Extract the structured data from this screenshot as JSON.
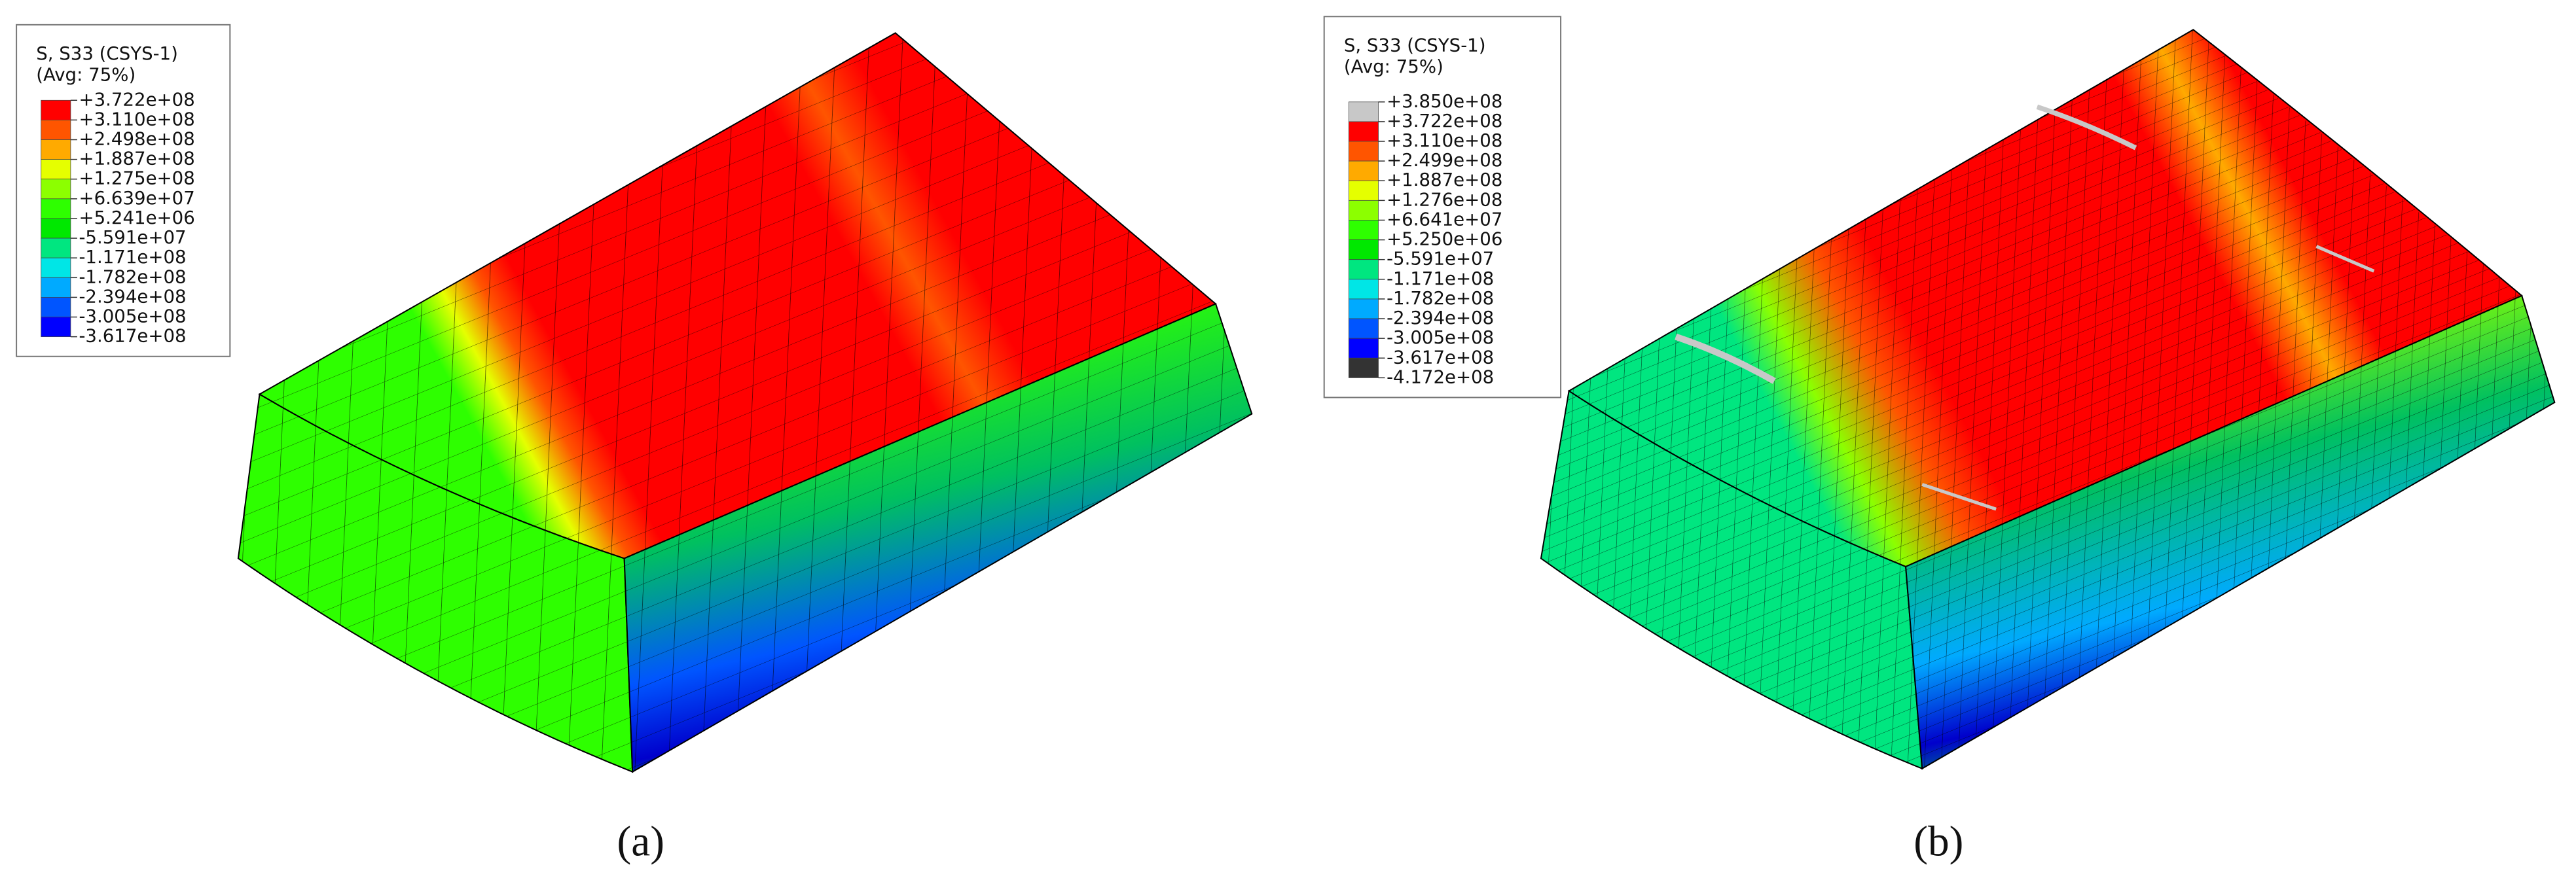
{
  "legends": [
    {
      "title": "S, S33 (CSYS-1)",
      "subtitle": "(Avg: 75%)",
      "labels": [
        "+3.722e+08",
        "+3.110e+08",
        "+2.498e+08",
        "+1.887e+08",
        "+1.275e+08",
        "+6.639e+07",
        "+5.241e+06",
        "-5.591e+07",
        "-1.171e+08",
        "-1.782e+08",
        "-2.394e+08",
        "-3.005e+08",
        "-3.617e+08"
      ],
      "colors": [
        "#ff0000",
        "#ff5500",
        "#ffaa00",
        "#e5ff00",
        "#8cff00",
        "#2eff00",
        "#00e800",
        "#00e680",
        "#00e6e6",
        "#00aaff",
        "#0055ff",
        "#0000ff"
      ]
    },
    {
      "title": "S, S33 (CSYS-1)",
      "subtitle": "(Avg: 75%)",
      "labels": [
        "+3.850e+08",
        "+3.722e+08",
        "+3.110e+08",
        "+2.499e+08",
        "+1.887e+08",
        "+1.276e+08",
        "+6.641e+07",
        "+5.250e+06",
        "-5.591e+07",
        "-1.171e+08",
        "-1.782e+08",
        "-2.394e+08",
        "-3.005e+08",
        "-3.617e+08",
        "-4.172e+08"
      ],
      "colors": [
        "#c8c8c8",
        "#ff0000",
        "#ff5500",
        "#ffaa00",
        "#e5ff00",
        "#8cff00",
        "#2eff00",
        "#00e800",
        "#00e680",
        "#00e6e6",
        "#00aaff",
        "#0055ff",
        "#0000ff",
        "#333333"
      ]
    }
  ],
  "captions": [
    "(a)",
    "(b)"
  ]
}
